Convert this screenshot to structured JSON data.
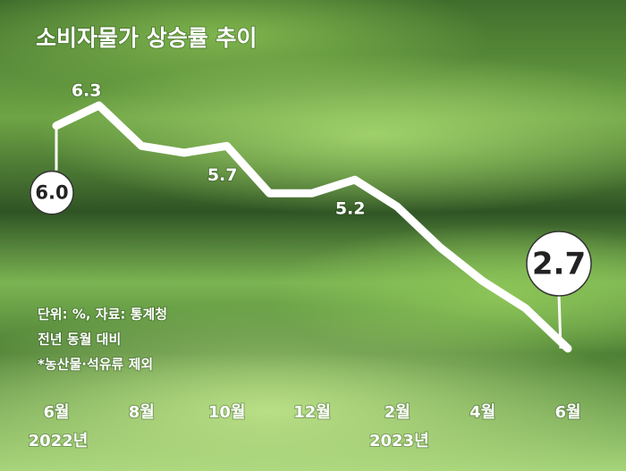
{
  "chart_data": {
    "type": "line",
    "title": "소비자물가 상승률 추이",
    "notes": [
      "단위: %, 자료: 통계청",
      "전년 동월 대비",
      "*농산물·석유류 제외"
    ],
    "categories": [
      "6월",
      null,
      "8월",
      null,
      "10월",
      null,
      "12월",
      null,
      "2월",
      null,
      "4월",
      null,
      "6월"
    ],
    "year_labels": [
      "2022년",
      null,
      null,
      null,
      null,
      null,
      null,
      null,
      "2023년",
      null,
      null,
      null,
      null
    ],
    "values": [
      6.0,
      6.3,
      5.7,
      5.6,
      5.7,
      5.0,
      5.0,
      5.2,
      4.8,
      4.2,
      3.7,
      3.3,
      2.7
    ],
    "value_labels": [
      "6.0",
      "6.3",
      null,
      null,
      "5.7",
      null,
      null,
      "5.2",
      null,
      null,
      null,
      null,
      "2.7"
    ],
    "color": "#ffffff"
  }
}
